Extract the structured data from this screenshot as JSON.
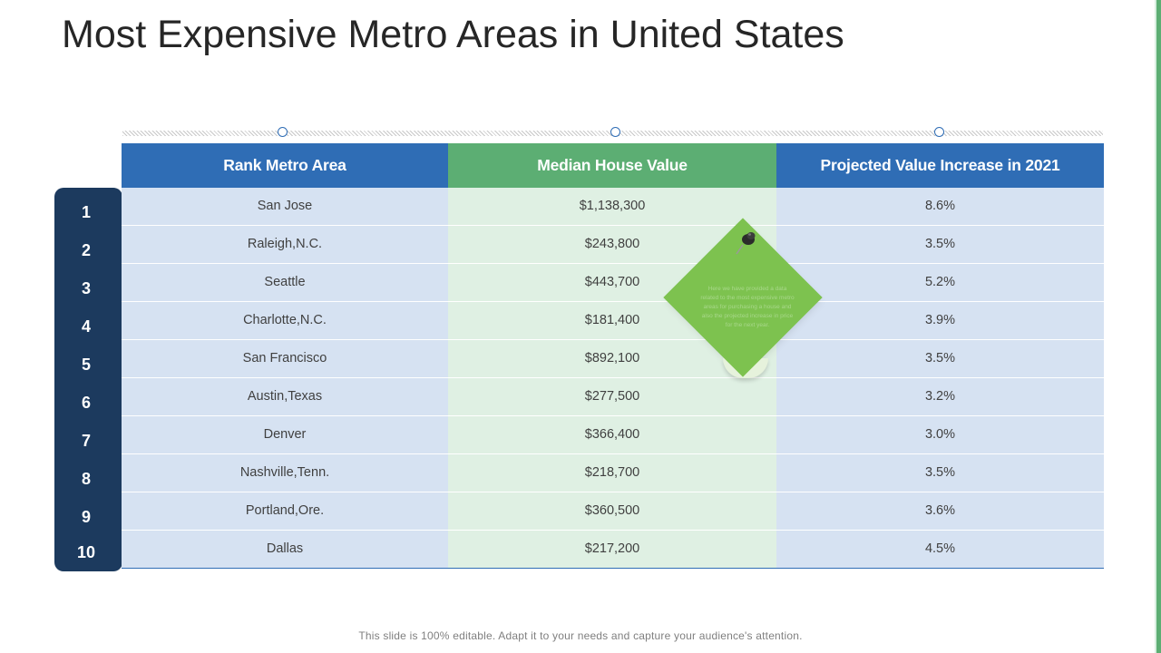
{
  "title": "Most Expensive Metro Areas in United States",
  "colors": {
    "blue": "#2f6db5",
    "green": "#5cae73",
    "navy": "#1c3a5e",
    "light_blue": "#d6e2f2",
    "light_green": "#dff0e3",
    "note_green": "#7dc24f"
  },
  "table": {
    "headers": [
      "Rank Metro Area",
      "Median House Value",
      "Projected Value Increase in 2021"
    ],
    "ranks": [
      "1",
      "2",
      "3",
      "4",
      "5",
      "6",
      "7",
      "8",
      "9",
      "10"
    ],
    "rows": [
      {
        "area": "San Jose",
        "value": "$1,138,300",
        "increase": "8.6%"
      },
      {
        "area": "Raleigh,N.C.",
        "value": "$243,800",
        "increase": "3.5%"
      },
      {
        "area": "Seattle",
        "value": "$443,700",
        "increase": "5.2%"
      },
      {
        "area": "Charlotte,N.C.",
        "value": "$181,400",
        "increase": "3.9%"
      },
      {
        "area": "San Francisco",
        "value": "$892,100",
        "increase": "3.5%"
      },
      {
        "area": "Austin,Texas",
        "value": "$277,500",
        "increase": "3.2%"
      },
      {
        "area": "Denver",
        "value": "$366,400",
        "increase": "3.0%"
      },
      {
        "area": "Nashville,Tenn.",
        "value": "$218,700",
        "increase": "3.5%"
      },
      {
        "area": "Portland,Ore.",
        "value": "$360,500",
        "increase": "3.6%"
      },
      {
        "area": "Dallas",
        "value": "$217,200",
        "increase": "4.5%"
      }
    ]
  },
  "sticky_note": {
    "text": "Here we have provided a data related to the most expensive metro areas for purchasing a house and also the projected increase in price for the next year.",
    "icon": "pushpin-icon"
  },
  "footer": "This slide is 100% editable. Adapt it to your needs and capture your audience's attention."
}
